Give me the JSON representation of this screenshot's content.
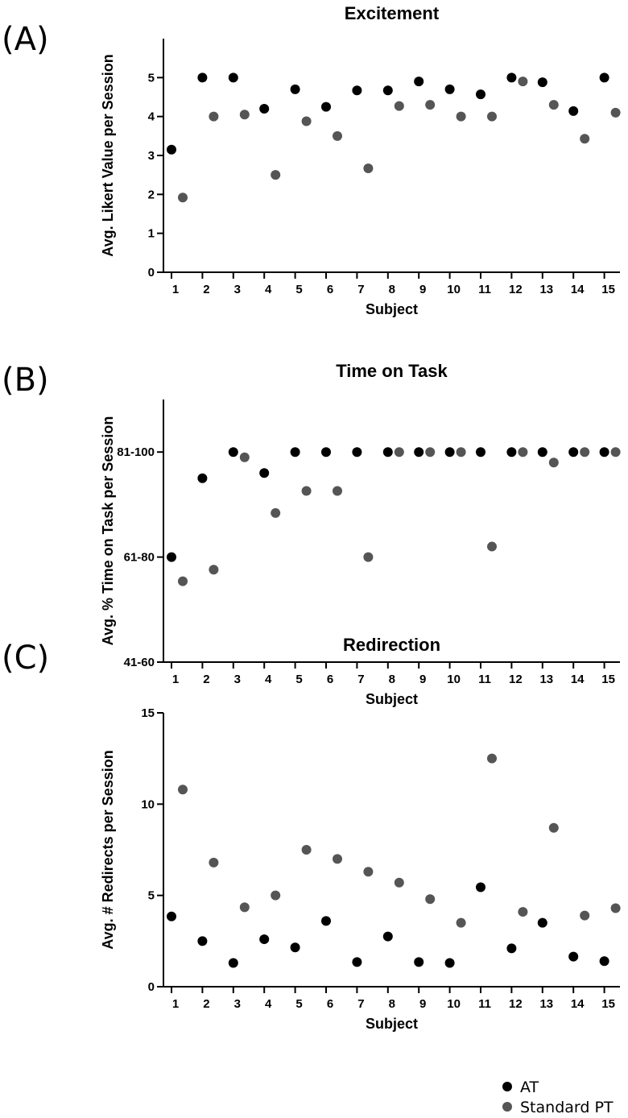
{
  "colors": {
    "AT": "#000000",
    "Standard PT": "#555555"
  },
  "legend": {
    "at_label": "AT",
    "pt_label": "Standard PT"
  },
  "chart_data": [
    {
      "panel": "(A)",
      "type": "scatter",
      "title": "Excitement",
      "xlabel": "Subject",
      "ylabel": "Avg. Likert Value per Session",
      "categories": [
        "1",
        "2",
        "3",
        "4",
        "5",
        "6",
        "7",
        "8",
        "9",
        "10",
        "11",
        "12",
        "13",
        "14",
        "15"
      ],
      "ylim": [
        0,
        6
      ],
      "yticks": [
        0,
        1,
        2,
        3,
        4,
        5
      ],
      "ytick_labels": [
        "0",
        "1",
        "2",
        "3",
        "4",
        "5"
      ],
      "series": [
        {
          "name": "AT",
          "values": [
            3.15,
            5.0,
            5.0,
            4.2,
            4.7,
            4.25,
            4.67,
            4.67,
            4.9,
            4.7,
            4.57,
            5.0,
            4.88,
            4.14,
            5.0
          ]
        },
        {
          "name": "Standard PT",
          "values": [
            1.92,
            4.0,
            4.05,
            2.5,
            3.88,
            3.5,
            2.67,
            4.27,
            4.3,
            4.0,
            4.0,
            4.9,
            4.3,
            3.43,
            4.1
          ]
        }
      ]
    },
    {
      "panel": "(B)",
      "type": "scatter",
      "title": "Time on Task",
      "xlabel": "Subject",
      "ylabel": "Avg. % Time on Task per Session",
      "categories": [
        "1",
        "2",
        "3",
        "4",
        "5",
        "6",
        "7",
        "8",
        "9",
        "10",
        "11",
        "12",
        "13",
        "14",
        "15"
      ],
      "ylim": [
        1,
        3.5
      ],
      "yticks": [
        1,
        2,
        3
      ],
      "ytick_labels": [
        "41-60",
        "61-80",
        "81-100"
      ],
      "series": [
        {
          "name": "AT",
          "values": [
            2.0,
            2.75,
            3.0,
            2.8,
            3.0,
            3.0,
            3.0,
            3.0,
            3.0,
            3.0,
            3.0,
            3.0,
            3.0,
            3.0,
            3.0
          ]
        },
        {
          "name": "Standard PT",
          "values": [
            1.77,
            1.88,
            2.95,
            2.42,
            2.63,
            2.63,
            2.0,
            3.0,
            3.0,
            3.0,
            2.1,
            3.0,
            2.9,
            3.0,
            3.0
          ]
        }
      ]
    },
    {
      "panel": "(C)",
      "type": "scatter",
      "title": "Redirection",
      "xlabel": "Subject",
      "ylabel": "Avg. # Redirects per Session",
      "categories": [
        "1",
        "2",
        "3",
        "4",
        "5",
        "6",
        "7",
        "8",
        "9",
        "10",
        "11",
        "12",
        "13",
        "14",
        "15"
      ],
      "ylim": [
        0,
        15
      ],
      "yticks": [
        0,
        5,
        10,
        15
      ],
      "ytick_labels": [
        "0",
        "5",
        "10",
        "15"
      ],
      "series": [
        {
          "name": "AT",
          "values": [
            3.85,
            2.5,
            1.3,
            2.6,
            2.15,
            3.6,
            1.35,
            2.75,
            1.35,
            1.3,
            5.45,
            2.1,
            3.5,
            1.65,
            1.4
          ]
        },
        {
          "name": "Standard PT",
          "values": [
            10.8,
            6.8,
            4.35,
            5.0,
            7.5,
            7.0,
            6.3,
            5.7,
            4.8,
            3.5,
            12.5,
            4.1,
            8.7,
            3.9,
            4.3
          ]
        }
      ]
    }
  ]
}
